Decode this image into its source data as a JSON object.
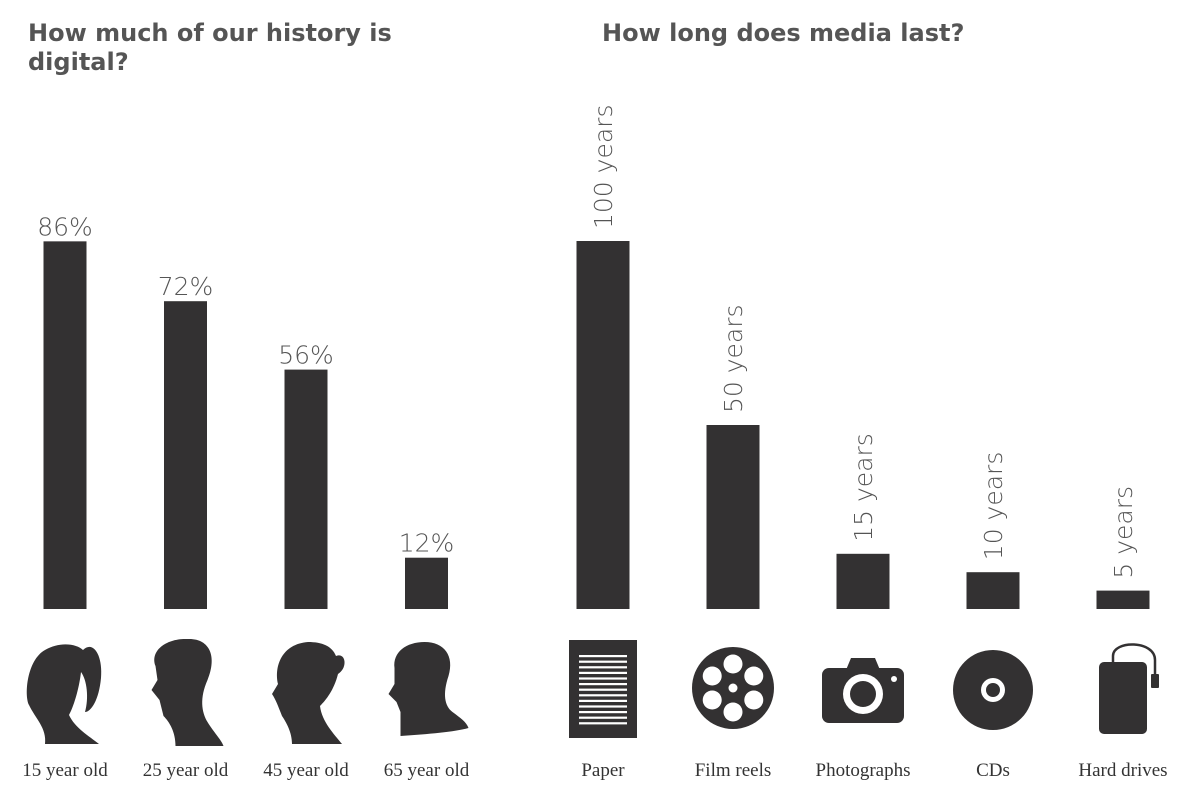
{
  "colors": {
    "bar": "#333132",
    "icon": "#333132",
    "title": "#555555",
    "value_label": "#555555",
    "category_label": "#333333"
  },
  "chart_data": [
    {
      "type": "bar",
      "title": "How much of our history is digital?",
      "categories": [
        "15 year old",
        "25 year old",
        "45 year old",
        "65 year old"
      ],
      "values": [
        86,
        72,
        56,
        12
      ],
      "value_labels": [
        "86%",
        "72%",
        "56%",
        "12%"
      ],
      "icons": [
        "girl-ponytail-silhouette-icon",
        "young-man-silhouette-icon",
        "woman-bun-silhouette-icon",
        "older-man-silhouette-icon"
      ],
      "ylim": [
        0,
        100
      ],
      "grid": false
    },
    {
      "type": "bar",
      "title": "How long does media last?",
      "categories": [
        "Paper",
        "Film reels",
        "Photographs",
        "CDs",
        "Hard drives"
      ],
      "values": [
        100,
        50,
        15,
        10,
        5
      ],
      "value_labels": [
        "100 years",
        "50 years",
        "15 years",
        "10 years",
        "5 years"
      ],
      "icons": [
        "paper-document-icon",
        "film-reel-icon",
        "camera-icon",
        "cd-disc-icon",
        "hard-drive-icon"
      ],
      "ylim": [
        0,
        100
      ],
      "grid": false
    }
  ]
}
